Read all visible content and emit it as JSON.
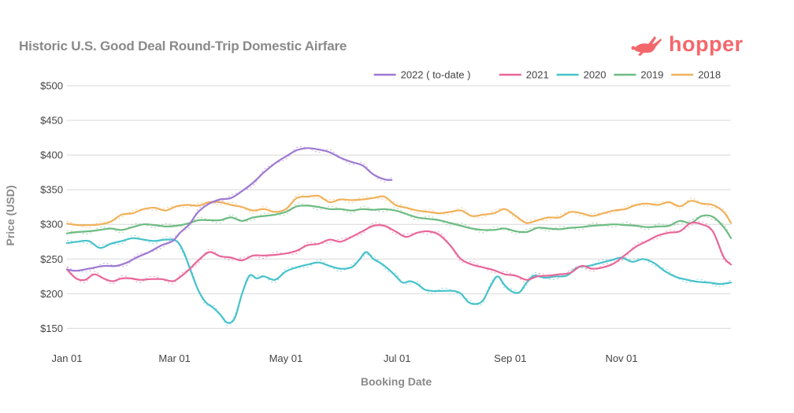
{
  "brand": {
    "name": "hopper",
    "color": "#f4676b",
    "icon": "bunny-icon"
  },
  "chart_data": {
    "type": "line",
    "title": "Historic U.S. Good Deal Round-Trip Domestic Airfare",
    "xlabel": "Booking Date",
    "ylabel": "Price (USD)",
    "x_unit": "day of year",
    "xlim": [
      0,
      364
    ],
    "ylim": [
      130,
      500
    ],
    "y_ticks": [
      150,
      200,
      250,
      300,
      350,
      400,
      450,
      500
    ],
    "y_tick_labels": [
      "$150",
      "$200",
      "$250",
      "$300",
      "$350",
      "$400",
      "$450",
      "$500"
    ],
    "x_ticks": [
      0,
      59,
      120,
      181,
      243,
      304
    ],
    "x_tick_labels": [
      "Jan 01",
      "Mar 01",
      "May 01",
      "Jul 01",
      "Sep 01",
      "Nov 01"
    ],
    "grid": true,
    "legend_position": "top-right",
    "series": [
      {
        "name": "2022 ( to-date )",
        "color": "#9e78d2",
        "x": [
          0,
          5,
          12,
          20,
          27,
          33,
          38,
          45,
          52,
          58,
          62,
          67,
          72,
          78,
          84,
          90,
          96,
          102,
          108,
          114,
          120,
          126,
          132,
          138,
          144,
          150,
          156,
          162,
          168,
          174,
          178
        ],
        "y": [
          235,
          233,
          236,
          240,
          240,
          245,
          252,
          260,
          270,
          276,
          288,
          300,
          318,
          330,
          336,
          338,
          348,
          360,
          375,
          388,
          398,
          407,
          410,
          408,
          404,
          396,
          390,
          385,
          372,
          365,
          364
        ]
      },
      {
        "name": "2021",
        "color": "#e8679a",
        "x": [
          0,
          5,
          10,
          15,
          20,
          25,
          30,
          35,
          40,
          46,
          52,
          58,
          62,
          67,
          72,
          78,
          84,
          90,
          96,
          102,
          108,
          114,
          120,
          126,
          132,
          138,
          144,
          150,
          156,
          162,
          168,
          174,
          180,
          186,
          192,
          198,
          204,
          210,
          216,
          222,
          228,
          234,
          240,
          246,
          252,
          258,
          264,
          270,
          276,
          282,
          288,
          294,
          300,
          306,
          312,
          318,
          324,
          330,
          336,
          342,
          348,
          354,
          360,
          364
        ],
        "y": [
          235,
          222,
          220,
          228,
          222,
          218,
          222,
          222,
          220,
          221,
          221,
          218,
          224,
          235,
          248,
          260,
          254,
          252,
          248,
          255,
          255,
          256,
          258,
          262,
          270,
          272,
          278,
          275,
          282,
          290,
          298,
          298,
          290,
          282,
          288,
          290,
          285,
          270,
          250,
          242,
          238,
          234,
          228,
          226,
          220,
          225,
          226,
          228,
          230,
          240,
          236,
          238,
          244,
          256,
          268,
          276,
          284,
          288,
          290,
          302,
          300,
          290,
          253,
          242
        ]
      },
      {
        "name": "2020",
        "color": "#46c2cb",
        "x": [
          0,
          6,
          12,
          18,
          24,
          30,
          36,
          42,
          48,
          54,
          60,
          64,
          68,
          72,
          76,
          80,
          84,
          88,
          92,
          96,
          100,
          104,
          108,
          114,
          120,
          126,
          132,
          138,
          144,
          150,
          156,
          160,
          164,
          168,
          172,
          176,
          180,
          184,
          188,
          192,
          196,
          200,
          206,
          212,
          216,
          220,
          224,
          228,
          232,
          236,
          240,
          244,
          248,
          252,
          256,
          262,
          268,
          274,
          280,
          286,
          292,
          298,
          304,
          310,
          316,
          322,
          328,
          334,
          340,
          346,
          352,
          358,
          364
        ],
        "y": [
          273,
          275,
          276,
          266,
          272,
          276,
          280,
          278,
          276,
          278,
          276,
          260,
          232,
          205,
          188,
          180,
          170,
          158,
          165,
          200,
          226,
          222,
          225,
          220,
          232,
          238,
          242,
          245,
          240,
          236,
          238,
          248,
          260,
          250,
          244,
          236,
          226,
          216,
          218,
          214,
          206,
          204,
          204,
          204,
          200,
          188,
          185,
          190,
          210,
          225,
          212,
          203,
          202,
          216,
          226,
          223,
          225,
          226,
          238,
          240,
          244,
          248,
          252,
          246,
          250,
          244,
          232,
          224,
          220,
          217,
          216,
          214,
          216
        ]
      },
      {
        "name": "2019",
        "color": "#6dbb82",
        "x": [
          0,
          6,
          12,
          18,
          24,
          30,
          36,
          42,
          48,
          54,
          60,
          66,
          72,
          78,
          84,
          90,
          96,
          102,
          108,
          114,
          120,
          126,
          132,
          138,
          144,
          150,
          156,
          162,
          168,
          174,
          180,
          186,
          192,
          198,
          204,
          210,
          216,
          222,
          228,
          234,
          240,
          246,
          252,
          258,
          264,
          270,
          276,
          282,
          288,
          294,
          300,
          306,
          312,
          318,
          324,
          330,
          336,
          342,
          348,
          354,
          360,
          364
        ],
        "y": [
          287,
          289,
          290,
          292,
          294,
          292,
          296,
          300,
          299,
          297,
          298,
          301,
          306,
          306,
          306,
          310,
          305,
          310,
          312,
          314,
          318,
          326,
          327,
          325,
          322,
          322,
          320,
          322,
          321,
          322,
          320,
          315,
          310,
          308,
          306,
          302,
          298,
          294,
          292,
          292,
          294,
          290,
          289,
          295,
          294,
          293,
          295,
          296,
          298,
          299,
          300,
          299,
          298,
          296,
          297,
          298,
          305,
          302,
          312,
          311,
          296,
          280
        ]
      },
      {
        "name": "2018",
        "color": "#f0b15a",
        "x": [
          0,
          6,
          12,
          18,
          24,
          30,
          36,
          42,
          48,
          54,
          60,
          66,
          72,
          78,
          84,
          90,
          96,
          102,
          108,
          114,
          120,
          126,
          132,
          138,
          144,
          150,
          156,
          162,
          168,
          174,
          180,
          186,
          192,
          198,
          204,
          210,
          216,
          222,
          228,
          234,
          240,
          246,
          252,
          258,
          264,
          270,
          276,
          282,
          288,
          294,
          300,
          306,
          312,
          318,
          324,
          330,
          336,
          342,
          348,
          354,
          360,
          364
        ],
        "y": [
          301,
          299,
          299,
          300,
          304,
          314,
          316,
          322,
          324,
          320,
          326,
          328,
          327,
          332,
          332,
          328,
          325,
          320,
          322,
          318,
          322,
          338,
          340,
          341,
          332,
          336,
          335,
          336,
          338,
          340,
          328,
          324,
          320,
          318,
          316,
          318,
          320,
          312,
          314,
          316,
          322,
          312,
          302,
          306,
          310,
          310,
          318,
          316,
          312,
          316,
          320,
          322,
          328,
          330,
          328,
          332,
          326,
          334,
          330,
          328,
          318,
          302
        ]
      }
    ]
  }
}
